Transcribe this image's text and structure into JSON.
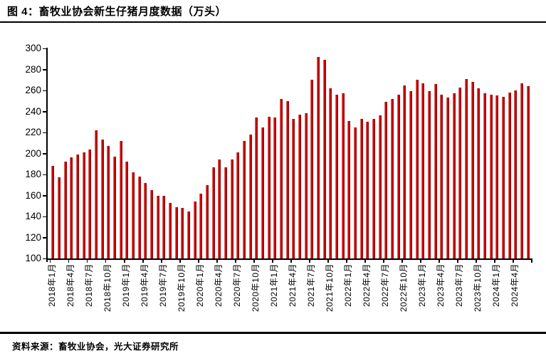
{
  "figure": {
    "title": "图 4：畜牧业协会新生仔猪月度数据（万头）",
    "source": "资料来源：畜牧业协会，光大证券研究所"
  },
  "chart_data": {
    "type": "bar",
    "title": "畜牧业协会新生仔猪月度数据（万头）",
    "xlabel": "",
    "ylabel": "",
    "legend": "none",
    "grid": false,
    "bar_color": "#C00000",
    "axis_color": "#000000",
    "ylim": [
      100,
      300
    ],
    "yticks": [
      100,
      120,
      140,
      160,
      180,
      200,
      220,
      240,
      260,
      280,
      300
    ],
    "x_tick_every": 3,
    "x_tick_labels": [
      "2018年1月",
      "2018年4月",
      "2018年7月",
      "2018年10月",
      "2019年1月",
      "2019年4月",
      "2019年7月",
      "2019年10月",
      "2020年1月",
      "2020年4月",
      "2020年7月",
      "2020年10月",
      "2021年1月",
      "2021年4月",
      "2021年7月",
      "2021年10月",
      "2022年1月",
      "2022年4月",
      "2022年7月",
      "2022年10月",
      "2023年1月",
      "2023年4月",
      "2023年7月",
      "2023年10月",
      "2024年1月",
      "2024年4月"
    ],
    "categories": [
      "2018年1月",
      "2018年2月",
      "2018年3月",
      "2018年4月",
      "2018年5月",
      "2018年6月",
      "2018年7月",
      "2018年8月",
      "2018年9月",
      "2018年10月",
      "2018年11月",
      "2018年12月",
      "2019年1月",
      "2019年2月",
      "2019年3月",
      "2019年4月",
      "2019年5月",
      "2019年6月",
      "2019年7月",
      "2019年8月",
      "2019年9月",
      "2019年10月",
      "2019年11月",
      "2019年12月",
      "2020年1月",
      "2020年2月",
      "2020年3月",
      "2020年4月",
      "2020年5月",
      "2020年6月",
      "2020年7月",
      "2020年8月",
      "2020年9月",
      "2020年10月",
      "2020年11月",
      "2020年12月",
      "2021年1月",
      "2021年2月",
      "2021年3月",
      "2021年4月",
      "2021年5月",
      "2021年6月",
      "2021年7月",
      "2021年8月",
      "2021年9月",
      "2021年10月",
      "2021年11月",
      "2021年12月",
      "2022年1月",
      "2022年2月",
      "2022年3月",
      "2022年4月",
      "2022年5月",
      "2022年6月",
      "2022年7月",
      "2022年8月",
      "2022年9月",
      "2022年10月",
      "2022年11月",
      "2022年12月",
      "2023年1月",
      "2023年2月",
      "2023年3月",
      "2023年4月",
      "2023年5月",
      "2023年6月",
      "2023年7月",
      "2023年8月",
      "2023年9月",
      "2023年10月",
      "2023年11月",
      "2023年12月",
      "2024年1月",
      "2024年2月",
      "2024年3月",
      "2024年4月",
      "2024年5月",
      "2024年6月"
    ],
    "values": [
      188,
      177,
      192,
      196,
      199,
      201,
      204,
      222,
      213,
      207,
      197,
      212,
      192,
      182,
      178,
      172,
      165,
      160,
      160,
      153,
      149,
      148,
      145,
      154,
      162,
      170,
      187,
      194,
      187,
      194,
      201,
      212,
      218,
      234,
      225,
      235,
      234,
      252,
      250,
      233,
      237,
      238,
      270,
      292,
      289,
      262,
      256,
      257,
      231,
      225,
      233,
      230,
      233,
      236,
      249,
      252,
      256,
      265,
      259,
      270,
      267,
      259,
      266,
      256,
      253,
      257,
      263,
      271,
      268,
      262,
      257,
      256,
      255,
      254,
      258,
      260,
      267,
      264
    ]
  }
}
